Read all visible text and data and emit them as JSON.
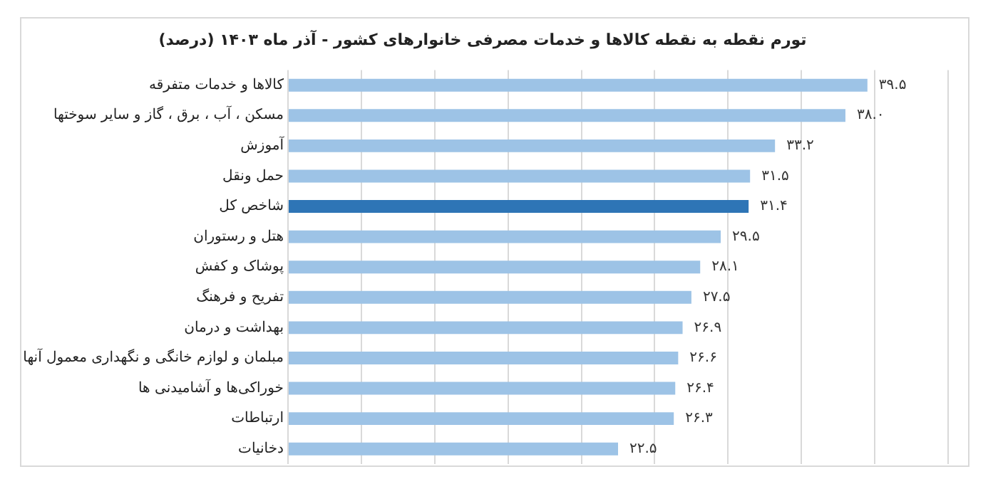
{
  "chart_data": {
    "type": "bar",
    "orientation": "horizontal",
    "title": "تورم نقطه به نقطه کالاها و خدمات مصرفی خانوارهای کشور - آذر ماه ۱۴۰۳ (درصد)",
    "categories": [
      "کالاها و خدمات متفرقه",
      "مسکن ، آب ، برق ، گاز و سایر سوختها",
      "آموزش",
      "حمل ونقل",
      "شاخص کل",
      "هتل و رستوران",
      "پوشاک و کفش",
      "تفریح و فرهنگ",
      "بهداشت و درمان",
      "مبلمان و لوازم خانگی و نگهداری معمول آنها",
      "خوراکی‌ها و آشامیدنی ها",
      "ارتباطات",
      "دخانیات"
    ],
    "values": [
      39.5,
      38.0,
      33.2,
      31.5,
      31.4,
      29.5,
      28.1,
      27.5,
      26.9,
      26.6,
      26.4,
      26.3,
      22.5
    ],
    "value_labels": [
      "۳۹.۵",
      "۳۸.۰",
      "۳۳.۲",
      "۳۱.۵",
      "۳۱.۴",
      "۲۹.۵",
      "۲۸.۱",
      "۲۷.۵",
      "۲۶.۹",
      "۲۶.۶",
      "۲۶.۴",
      "۲۶.۳",
      "۲۲.۵"
    ],
    "colors": [
      "#9dc3e6",
      "#9dc3e6",
      "#9dc3e6",
      "#9dc3e6",
      "#2e75b6",
      "#9dc3e6",
      "#9dc3e6",
      "#9dc3e6",
      "#9dc3e6",
      "#9dc3e6",
      "#9dc3e6",
      "#9dc3e6",
      "#9dc3e6"
    ],
    "xlim": [
      0,
      45
    ],
    "xticks": [
      {
        "value": 0,
        "label": null
      },
      {
        "value": 5,
        "label": null
      },
      {
        "value": 10,
        "label": null
      },
      {
        "value": 15,
        "label": null
      },
      {
        "value": 20,
        "label": null
      },
      {
        "value": 25,
        "label": null
      },
      {
        "value": 30,
        "label": null
      },
      {
        "value": 35,
        "label": null
      },
      {
        "value": 40,
        "label": null
      },
      {
        "value": 45,
        "label": null
      }
    ],
    "grid": "x",
    "tick_labels": "y",
    "legend": false
  }
}
